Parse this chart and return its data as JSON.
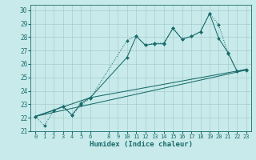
{
  "xlabel": "Humidex (Indice chaleur)",
  "bg_color": "#c8eaea",
  "grid_color": "#a8cccc",
  "line_color": "#1a6b6b",
  "xlim": [
    -0.5,
    23.5
  ],
  "ylim": [
    21.0,
    30.4
  ],
  "xticks": [
    0,
    1,
    2,
    3,
    4,
    5,
    6,
    8,
    9,
    10,
    11,
    12,
    13,
    14,
    15,
    16,
    17,
    18,
    19,
    20,
    21,
    22,
    23
  ],
  "yticks": [
    21,
    22,
    23,
    24,
    25,
    26,
    27,
    28,
    29,
    30
  ],
  "line1_x": [
    0,
    1,
    2,
    3,
    4,
    5,
    6,
    10,
    11,
    12,
    13,
    14,
    15,
    16,
    17,
    18,
    19,
    20,
    21,
    22,
    23
  ],
  "line1_y": [
    22.1,
    21.4,
    22.55,
    22.85,
    22.2,
    22.95,
    23.45,
    27.75,
    28.1,
    27.4,
    27.55,
    27.55,
    28.65,
    27.85,
    28.05,
    28.4,
    29.75,
    28.9,
    26.8,
    25.45,
    25.6
  ],
  "line2_x": [
    0,
    2,
    3,
    4,
    5,
    6,
    10,
    11,
    12,
    13,
    14,
    15,
    16,
    17,
    18,
    19,
    20,
    21,
    22,
    23
  ],
  "line2_y": [
    22.1,
    22.55,
    22.85,
    22.2,
    23.1,
    23.5,
    26.5,
    28.05,
    27.4,
    27.5,
    27.5,
    28.65,
    27.85,
    28.05,
    28.4,
    29.75,
    27.9,
    26.85,
    25.45,
    25.55
  ],
  "line3_x": [
    0,
    6,
    23
  ],
  "line3_y": [
    22.1,
    23.0,
    25.55
  ],
  "line4_x": [
    0,
    6,
    23
  ],
  "line4_y": [
    22.1,
    23.5,
    25.6
  ]
}
